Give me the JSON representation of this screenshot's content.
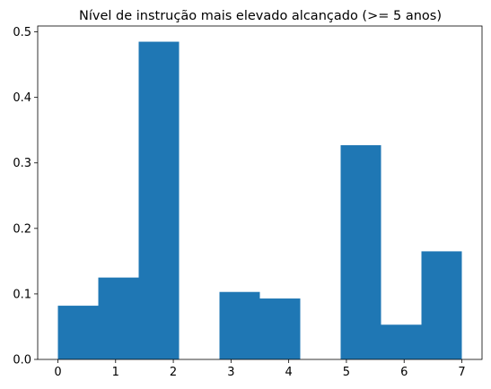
{
  "chart_data": {
    "type": "histogram",
    "title": "Nível de instrução mais elevado alcançado (>= 5 anos)",
    "bins": [
      0,
      0.7,
      1.4,
      2.1,
      2.8,
      3.5,
      4.2,
      4.9,
      5.6,
      6.3,
      7
    ],
    "values": [
      0.082,
      0.125,
      0.485,
      0,
      0.103,
      0.093,
      0,
      0.327,
      0.053,
      0.165
    ],
    "color": "#1f77b4",
    "xlim": [
      -0.35,
      7.35
    ],
    "xticks": [
      0,
      1,
      2,
      3,
      4,
      5,
      6,
      7
    ],
    "ylim": [
      0,
      0.509
    ],
    "yticks": [
      {
        "value": 0,
        "label": "0.0"
      },
      0.1,
      0.2,
      0.3,
      0.4,
      0.5
    ]
  }
}
